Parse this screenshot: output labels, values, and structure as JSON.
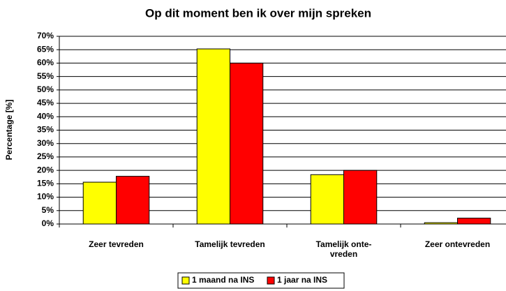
{
  "chart_data": {
    "type": "bar",
    "title": "Op dit moment ben ik over mijn spreken",
    "ylabel": "Percentage [%]",
    "categories": [
      "Zeer tevreden",
      "Tamelijk tevreden",
      "Tamelijk onte-\nvreden",
      "Zeer ontevreden"
    ],
    "series": [
      {
        "name": "1 maand na INS",
        "color": "#ffff00",
        "values": [
          15.6,
          65.3,
          18.4,
          0.5
        ]
      },
      {
        "name": "1 jaar na INS",
        "color": "#ff0000",
        "values": [
          17.8,
          60,
          20,
          2.2
        ]
      }
    ],
    "ylim": [
      0,
      70
    ],
    "yticks": [
      {
        "value": 0,
        "label": "0%"
      },
      {
        "value": 5,
        "label": "5%"
      },
      {
        "value": 10,
        "label": "10%"
      },
      {
        "value": 15,
        "label": "15%"
      },
      {
        "value": 20,
        "label": "20%"
      },
      {
        "value": 25,
        "label": "25%"
      },
      {
        "value": 30,
        "label": "30%"
      },
      {
        "value": 35,
        "label": "35%"
      },
      {
        "value": 40,
        "label": "40%"
      },
      {
        "value": 45,
        "label": "45%"
      },
      {
        "value": 50,
        "label": "50%"
      },
      {
        "value": 55,
        "label": "55%"
      },
      {
        "value": 60,
        "label": "60%"
      },
      {
        "value": 65,
        "label": "65%"
      },
      {
        "value": 70,
        "label": "70%"
      }
    ],
    "grid": true,
    "legend": "bottom"
  }
}
